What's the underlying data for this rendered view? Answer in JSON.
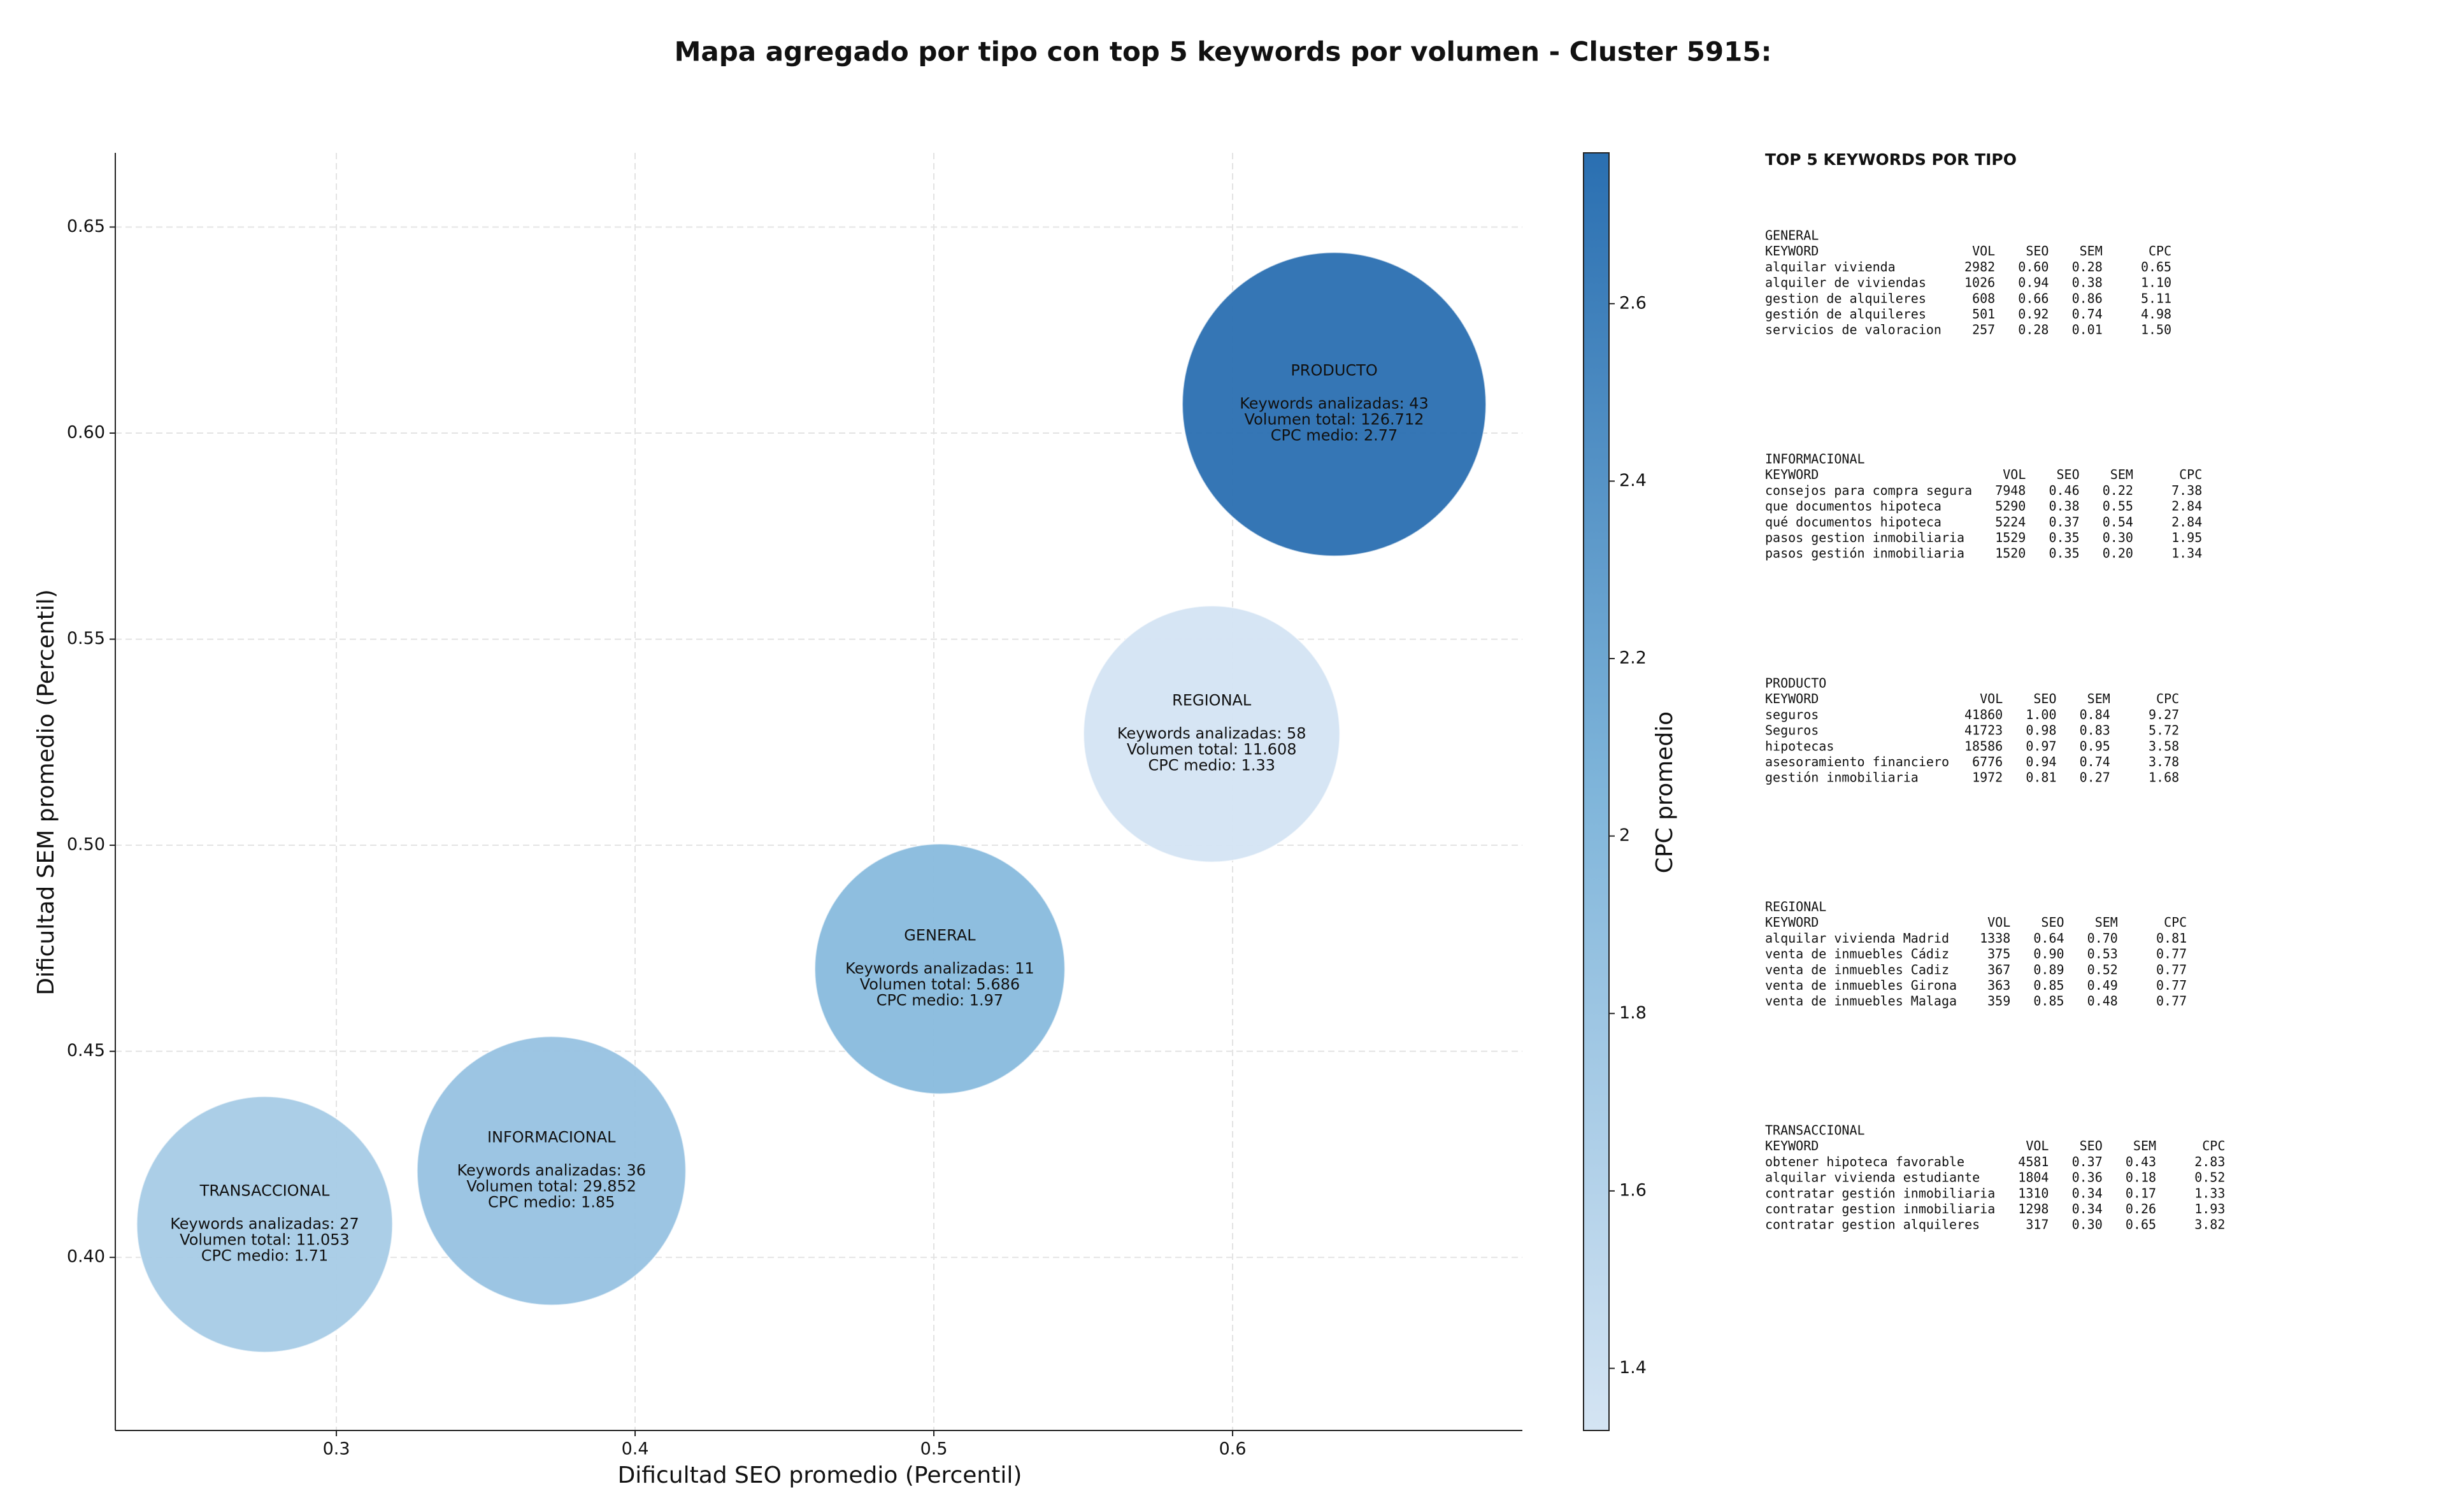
{
  "chart_data": {
    "type": "bubble",
    "title": "Mapa agregado por tipo con top 5 keywords por volumen - Cluster 5915:",
    "x_label": "Dificultad SEO promedio (Percentil)",
    "y_label": "Dificultad SEM promedio (Percentil)",
    "colorbar_label": "CPC promedio",
    "xlim": [
      0.226,
      0.697
    ],
    "ylim": [
      0.358,
      0.668
    ],
    "xticks": [
      0.3,
      0.4,
      0.5,
      0.6
    ],
    "yticks": [
      {
        "value": 0.4,
        "label": "0.40"
      },
      0.45,
      {
        "value": 0.5,
        "label": "0.50"
      },
      0.55,
      {
        "value": 0.6,
        "label": "0.60"
      },
      0.65
    ],
    "clim": [
      1.33,
      2.77
    ],
    "cticks": [
      1.4,
      1.6,
      1.8,
      2.0,
      2.2,
      2.4,
      2.6
    ],
    "colormap": [
      "#d4e4f3",
      "#7fb5da",
      "#2a6fb1"
    ],
    "grid": true,
    "points": [
      {
        "name": "TRANSACCIONAL",
        "x": 0.276,
        "y": 0.408,
        "cpc": 1.71,
        "volume": 11053,
        "lines": [
          "Keywords analizadas: 27",
          "Volumen total: 11.053",
          "CPC medio: 1.71"
        ]
      },
      {
        "name": "INFORMACIONAL",
        "x": 0.372,
        "y": 0.421,
        "cpc": 1.85,
        "volume": 29852,
        "lines": [
          "Keywords analizadas: 36",
          "Volumen total: 29.852",
          "CPC medio: 1.85"
        ]
      },
      {
        "name": "GENERAL",
        "x": 0.502,
        "y": 0.47,
        "cpc": 1.97,
        "volume": 5686,
        "lines": [
          "Keywords analizadas: 11",
          "Volumen total: 5.686",
          "CPC medio: 1.97"
        ]
      },
      {
        "name": "REGIONAL",
        "x": 0.593,
        "y": 0.527,
        "cpc": 1.33,
        "volume": 11608,
        "lines": [
          "Keywords analizadas: 58",
          "Volumen total: 11.608",
          "CPC medio: 1.33"
        ]
      },
      {
        "name": "PRODUCTO",
        "x": 0.634,
        "y": 0.607,
        "cpc": 2.77,
        "volume": 126712,
        "lines": [
          "Keywords analizadas: 43",
          "Volumen total: 126.712",
          "CPC medio: 2.77"
        ]
      }
    ]
  },
  "side_table": {
    "title": "TOP 5 KEYWORDS POR TIPO",
    "columns": [
      "KEYWORD",
      "VOL",
      "SEO",
      "SEM",
      "CPC"
    ],
    "groups": [
      {
        "name": "GENERAL",
        "rows": [
          [
            "alquilar vivienda",
            "2982",
            "0.60",
            "0.28",
            "0.65"
          ],
          [
            "alquiler de viviendas",
            "1026",
            "0.94",
            "0.38",
            "1.10"
          ],
          [
            "gestion de alquileres",
            "608",
            "0.66",
            "0.86",
            "5.11"
          ],
          [
            "gestión de alquileres",
            "501",
            "0.92",
            "0.74",
            "4.98"
          ],
          [
            "servicios de valoracion",
            "257",
            "0.28",
            "0.01",
            "1.50"
          ]
        ]
      },
      {
        "name": "INFORMACIONAL",
        "rows": [
          [
            "consejos para compra segura",
            "7948",
            "0.46",
            "0.22",
            "7.38"
          ],
          [
            "que documentos hipoteca",
            "5290",
            "0.38",
            "0.55",
            "2.84"
          ],
          [
            "qué documentos hipoteca",
            "5224",
            "0.37",
            "0.54",
            "2.84"
          ],
          [
            "pasos gestion inmobiliaria",
            "1529",
            "0.35",
            "0.30",
            "1.95"
          ],
          [
            "pasos gestión inmobiliaria",
            "1520",
            "0.35",
            "0.20",
            "1.34"
          ]
        ]
      },
      {
        "name": "PRODUCTO",
        "rows": [
          [
            "seguros",
            "41860",
            "1.00",
            "0.84",
            "9.27"
          ],
          [
            "Seguros",
            "41723",
            "0.98",
            "0.83",
            "5.72"
          ],
          [
            "hipotecas",
            "18586",
            "0.97",
            "0.95",
            "3.58"
          ],
          [
            "asesoramiento financiero",
            "6776",
            "0.94",
            "0.74",
            "3.78"
          ],
          [
            "gestión inmobiliaria",
            "1972",
            "0.81",
            "0.27",
            "1.68"
          ]
        ]
      },
      {
        "name": "REGIONAL",
        "rows": [
          [
            "alquilar vivienda Madrid",
            "1338",
            "0.64",
            "0.70",
            "0.81"
          ],
          [
            "venta de inmuebles Cádiz",
            "375",
            "0.90",
            "0.53",
            "0.77"
          ],
          [
            "venta de inmuebles Cadiz",
            "367",
            "0.89",
            "0.52",
            "0.77"
          ],
          [
            "venta de inmuebles Girona",
            "363",
            "0.85",
            "0.49",
            "0.77"
          ],
          [
            "venta de inmuebles Malaga",
            "359",
            "0.85",
            "0.48",
            "0.77"
          ]
        ]
      },
      {
        "name": "TRANSACCIONAL",
        "rows": [
          [
            "obtener hipoteca favorable",
            "4581",
            "0.37",
            "0.43",
            "2.83"
          ],
          [
            "alquilar vivienda estudiante",
            "1804",
            "0.36",
            "0.18",
            "0.52"
          ],
          [
            "contratar gestión inmobiliaria",
            "1310",
            "0.34",
            "0.17",
            "1.33"
          ],
          [
            "contratar gestion inmobiliaria",
            "1298",
            "0.34",
            "0.26",
            "1.93"
          ],
          [
            "contratar gestion alquileres",
            "317",
            "0.30",
            "0.65",
            "3.82"
          ]
        ]
      }
    ]
  }
}
